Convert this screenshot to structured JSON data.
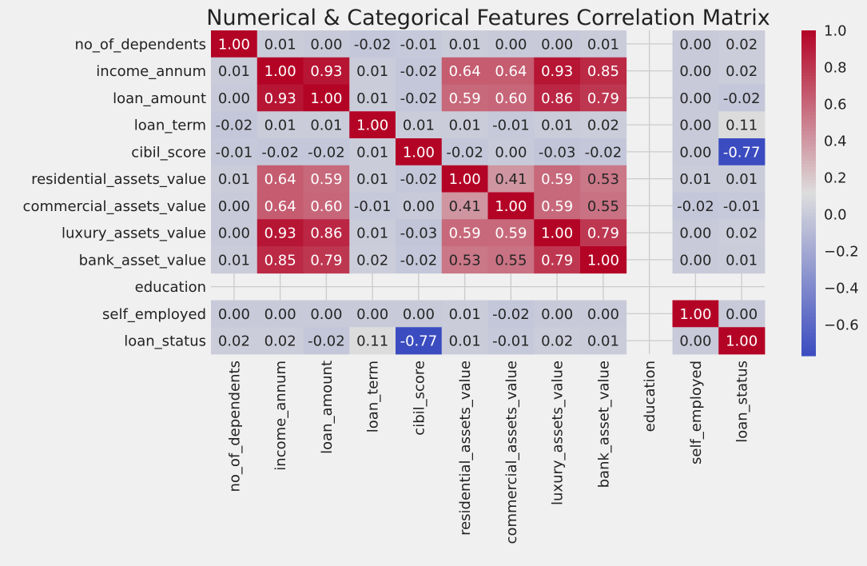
{
  "chart_data": {
    "type": "heatmap",
    "title": "Numerical & Categorical Features Correlation Matrix",
    "labels": [
      "no_of_dependents",
      "income_annum",
      "loan_amount",
      "loan_term",
      "cibil_score",
      "residential_assets_value",
      "commercial_assets_value",
      "luxury_assets_value",
      "bank_asset_value",
      "education",
      "self_employed",
      "loan_status"
    ],
    "values": [
      [
        1.0,
        0.01,
        -0.0,
        -0.02,
        -0.01,
        0.01,
        -0.0,
        0.0,
        0.01,
        null,
        0.0,
        0.02
      ],
      [
        0.01,
        1.0,
        0.93,
        0.01,
        -0.02,
        0.64,
        0.64,
        0.93,
        0.85,
        null,
        0.0,
        0.02
      ],
      [
        -0.0,
        0.93,
        1.0,
        0.01,
        -0.02,
        0.59,
        0.6,
        0.86,
        0.79,
        null,
        0.0,
        -0.02
      ],
      [
        -0.02,
        0.01,
        0.01,
        1.0,
        0.01,
        0.01,
        -0.01,
        0.01,
        0.02,
        null,
        0.0,
        0.11
      ],
      [
        -0.01,
        -0.02,
        -0.02,
        0.01,
        1.0,
        -0.02,
        -0.0,
        -0.03,
        -0.02,
        null,
        -0.0,
        -0.77
      ],
      [
        0.01,
        0.64,
        0.59,
        0.01,
        -0.02,
        1.0,
        0.41,
        0.59,
        0.53,
        null,
        0.01,
        0.01
      ],
      [
        -0.0,
        0.64,
        0.6,
        -0.01,
        -0.0,
        0.41,
        1.0,
        0.59,
        0.55,
        null,
        -0.02,
        -0.01
      ],
      [
        0.0,
        0.93,
        0.86,
        0.01,
        -0.03,
        0.59,
        0.59,
        1.0,
        0.79,
        null,
        0.0,
        0.02
      ],
      [
        0.01,
        0.85,
        0.79,
        0.02,
        -0.02,
        0.53,
        0.55,
        0.79,
        1.0,
        null,
        -0.0,
        0.01
      ],
      [
        null,
        null,
        null,
        null,
        null,
        null,
        null,
        null,
        null,
        null,
        null,
        null
      ],
      [
        0.0,
        0.0,
        0.0,
        0.0,
        -0.0,
        0.01,
        -0.02,
        0.0,
        -0.0,
        null,
        1.0,
        -0.0
      ],
      [
        0.02,
        0.02,
        -0.02,
        0.11,
        -0.77,
        0.01,
        -0.01,
        0.02,
        0.01,
        null,
        -0.0,
        1.0
      ]
    ],
    "value_format": "0.00",
    "colormap": "coolwarm",
    "colorbar": {
      "vmin": -0.77,
      "vmax": 1.0,
      "ticks": [
        1.0,
        0.8,
        0.6,
        0.4,
        0.2,
        0.0,
        -0.2,
        -0.4,
        -0.6
      ],
      "tick_labels": [
        "1.0",
        "0.8",
        "0.6",
        "0.4",
        "0.2",
        "0.0",
        "−0.2",
        "−0.4",
        "−0.6"
      ]
    },
    "grid": true,
    "colors": {
      "background": "#f0f0f0",
      "grid": "#cbcbcb",
      "cold": "#3b4cc0",
      "neutral": "#dddddd",
      "hot": "#b40426"
    }
  }
}
